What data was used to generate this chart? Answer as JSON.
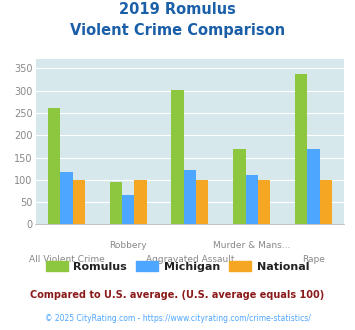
{
  "title_line1": "2019 Romulus",
  "title_line2": "Violent Crime Comparison",
  "categories": [
    "All Violent Crime",
    "Robbery",
    "Aggravated Assault",
    "Murder & Mans...",
    "Rape"
  ],
  "row1_labels": [
    "",
    "Robbery",
    "",
    "Murder & Mans...",
    ""
  ],
  "row2_labels": [
    "All Violent Crime",
    "",
    "Aggravated Assault",
    "",
    "Rape"
  ],
  "romulus": [
    260,
    95,
    302,
    170,
    338
  ],
  "michigan": [
    117,
    65,
    121,
    111,
    170
  ],
  "national": [
    100,
    100,
    100,
    100,
    100
  ],
  "color_romulus": "#8dc63f",
  "color_michigan": "#4da6ff",
  "color_national": "#f5a623",
  "ylim": [
    0,
    370
  ],
  "yticks": [
    0,
    50,
    100,
    150,
    200,
    250,
    300,
    350
  ],
  "background_color": "#d6e8ec",
  "grid_color": "#ffffff",
  "title_color": "#1a5fa8",
  "tick_color": "#888888",
  "legend_label_romulus": "Romulus",
  "legend_label_michigan": "Michigan",
  "legend_label_national": "National",
  "footnote1": "Compared to U.S. average. (U.S. average equals 100)",
  "footnote2": "© 2025 CityRating.com - https://www.cityrating.com/crime-statistics/",
  "footnote1_color": "#8b1a1a",
  "footnote2_color": "#4da6ff"
}
